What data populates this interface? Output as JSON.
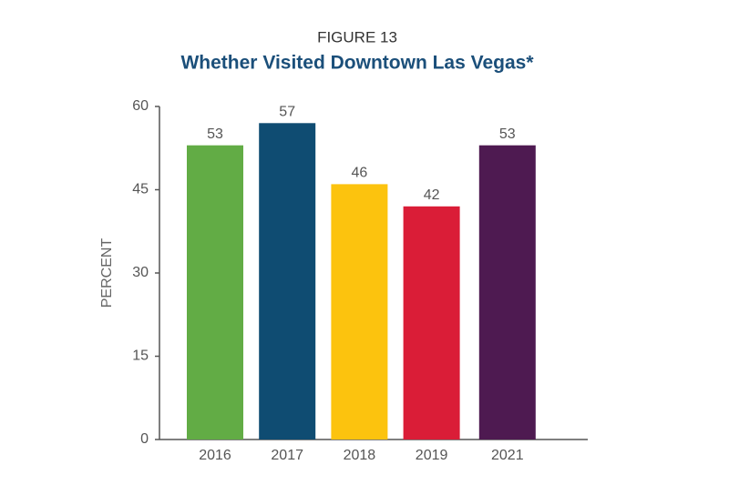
{
  "chart_data": {
    "type": "bar",
    "supertitle": "FIGURE 13",
    "title": "Whether Visited Downtown Las Vegas*",
    "ylabel": "PERCENT",
    "categories": [
      "2016",
      "2017",
      "2018",
      "2019",
      "2021"
    ],
    "values": [
      53,
      57,
      46,
      42,
      53
    ],
    "colors": [
      "#62ac45",
      "#0f4c72",
      "#fcc30e",
      "#da1d37",
      "#4e1a51"
    ],
    "ylim": [
      0,
      60
    ],
    "yticks": [
      0,
      15,
      30,
      45,
      60
    ],
    "grid": false
  }
}
